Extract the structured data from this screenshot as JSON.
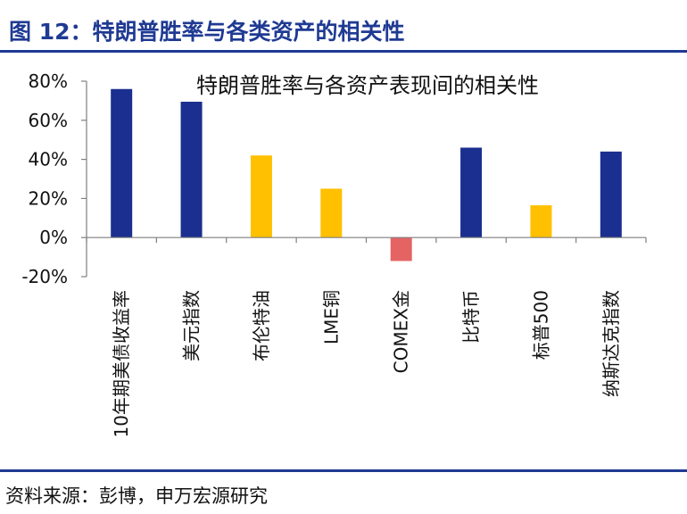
{
  "figure": {
    "title": "图 12：特朗普胜率与各类资产的相关性",
    "source": "资料来源：彭博，申万宏源研究"
  },
  "colors": {
    "brand": "#1f3a93",
    "navy_bar": "#1a2f8f",
    "gold_bar": "#ffc000",
    "red_bar": "#e46464",
    "axis": "#7f7f7f"
  },
  "chart_data": {
    "type": "bar",
    "title": "特朗普胜率与各资产表现间的相关性",
    "xlabel": "",
    "ylabel": "",
    "ylim": [
      -20,
      80
    ],
    "yticks": [
      -20,
      0,
      20,
      40,
      60,
      80
    ],
    "ytick_labels": [
      "-20%",
      "0%",
      "20%",
      "40%",
      "60%",
      "80%"
    ],
    "categories": [
      "10年期美债收益率",
      "美元指数",
      "布伦特油",
      "LME铜",
      "COMEX金",
      "比特币",
      "标普500",
      "纳斯达克指数"
    ],
    "values": [
      76,
      69.5,
      42,
      25,
      -12,
      46,
      16.5,
      44
    ],
    "bar_colors": [
      "#1a2f8f",
      "#1a2f8f",
      "#ffc000",
      "#ffc000",
      "#e46464",
      "#1a2f8f",
      "#ffc000",
      "#1a2f8f"
    ],
    "grid": false,
    "legend": "none"
  }
}
